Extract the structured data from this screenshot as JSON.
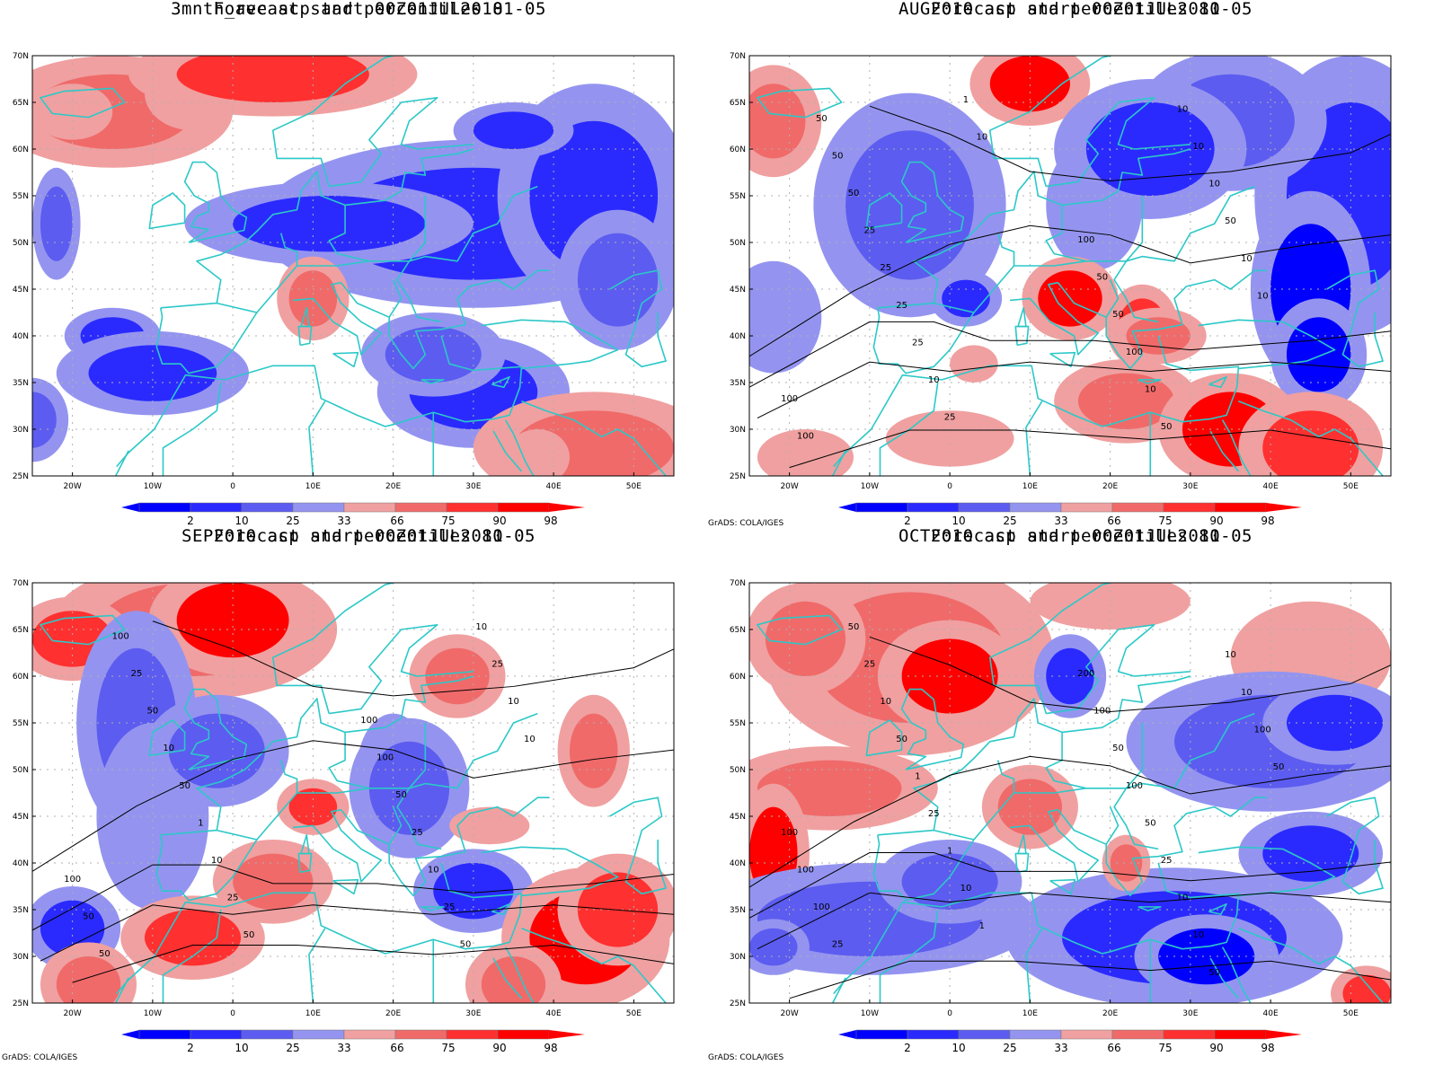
{
  "panels": [
    {
      "title": "3mnth_ave acp and percentiles 81-05",
      "subtitle": "Forecast start 00Z01JUL2010",
      "credit": "",
      "contours": false
    },
    {
      "title": "AUG2010 acp and percentiles 81-05",
      "subtitle": "Forecast start 00Z01JUL2010",
      "credit": "GrADS: COLA/IGES",
      "contours": true
    },
    {
      "title": "SEP2010 acp and percentiles 81-05",
      "subtitle": "Forecast start 00Z01JUL2010",
      "credit": "GrADS: COLA/IGES",
      "contours": true
    },
    {
      "title": "OCT2010 acp and percentiles 81-05",
      "subtitle": "Forecast start 00Z01JUL2010",
      "credit": "GrADS: COLA/IGES",
      "contours": true
    }
  ],
  "axes": {
    "lat_labels": [
      "70N",
      "65N",
      "60N",
      "55N",
      "50N",
      "45N",
      "40N",
      "35N",
      "30N",
      "25N"
    ],
    "lon_labels": [
      "20W",
      "10W",
      "0",
      "10E",
      "20E",
      "30E",
      "40E",
      "50E"
    ]
  },
  "colorbar": {
    "labels": [
      "2",
      "10",
      "25",
      "33",
      "66",
      "75",
      "90",
      "98"
    ],
    "colors": [
      "#0000ff",
      "#2a2aff",
      "#5c5cf0",
      "#9494f0",
      "#ffffff",
      "#f0a0a0",
      "#f06a6a",
      "#ff3030",
      "#ff0000"
    ]
  },
  "contour_labels": {
    "aug": [
      "100",
      "100",
      "100",
      "50",
      "50",
      "50",
      "50",
      "100",
      "50",
      "10",
      "25",
      "50",
      "25",
      "10",
      "25",
      "10",
      "25",
      "10",
      "10",
      "50",
      "25",
      "10",
      "1",
      "10",
      "10"
    ],
    "sep": [
      "100",
      "100",
      "50",
      "100",
      "50",
      "50",
      "100",
      "25",
      "25",
      "10",
      "50",
      "25",
      "10",
      "50",
      "50",
      "10",
      "1",
      "25",
      "10",
      "10",
      "25",
      "10",
      "50"
    ],
    "oct": [
      "100",
      "200",
      "100",
      "100",
      "100",
      "50",
      "25",
      "100",
      "50",
      "50",
      "25",
      "25",
      "10",
      "10",
      "50",
      "10",
      "1",
      "50",
      "25",
      "10",
      "1",
      "10",
      "10",
      "100",
      "1",
      "50"
    ]
  },
  "colors": {
    "coastline": "#2cc8c8",
    "contour": "#000000",
    "grid": "#b0b0b0"
  }
}
